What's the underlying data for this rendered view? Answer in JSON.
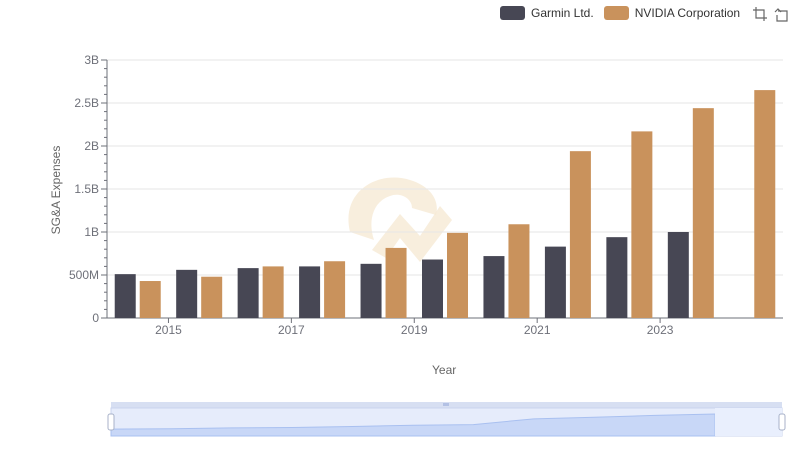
{
  "legend": {
    "items": [
      {
        "label": "Garmin Ltd.",
        "color": "#474754"
      },
      {
        "label": "NVIDIA Corporation",
        "color": "#c9925c"
      }
    ]
  },
  "toolbox": {
    "icons": [
      "zoom-icon",
      "restore-icon"
    ]
  },
  "chart_data": {
    "type": "bar",
    "x": [
      2014,
      2015,
      2016,
      2017,
      2018,
      2019,
      2020,
      2021,
      2022,
      2023,
      2024
    ],
    "xticks": [
      "2015",
      "2017",
      "2019",
      "2021",
      "2023"
    ],
    "xlabel": "Year",
    "ylabel": "SG&A Expenses",
    "yticks": [
      "0",
      "500M",
      "1B",
      "1.5B",
      "2B",
      "2.5B",
      "3B"
    ],
    "ylim": [
      0,
      3000000000
    ],
    "grid": true,
    "legend_position": "top-right",
    "series": [
      {
        "name": "Garmin Ltd.",
        "color": "#474754",
        "values": [
          510000000,
          560000000,
          580000000,
          600000000,
          630000000,
          680000000,
          720000000,
          830000000,
          940000000,
          1000000000,
          null
        ]
      },
      {
        "name": "NVIDIA Corporation",
        "color": "#c9925c",
        "values": [
          430000000,
          480000000,
          600000000,
          660000000,
          815000000,
          990000000,
          1090000000,
          1940000000,
          2170000000,
          2440000000,
          2650000000
        ]
      }
    ]
  },
  "datazoom": {
    "start": 0,
    "end": 100,
    "handle_icon": "drag-handle-icon"
  }
}
